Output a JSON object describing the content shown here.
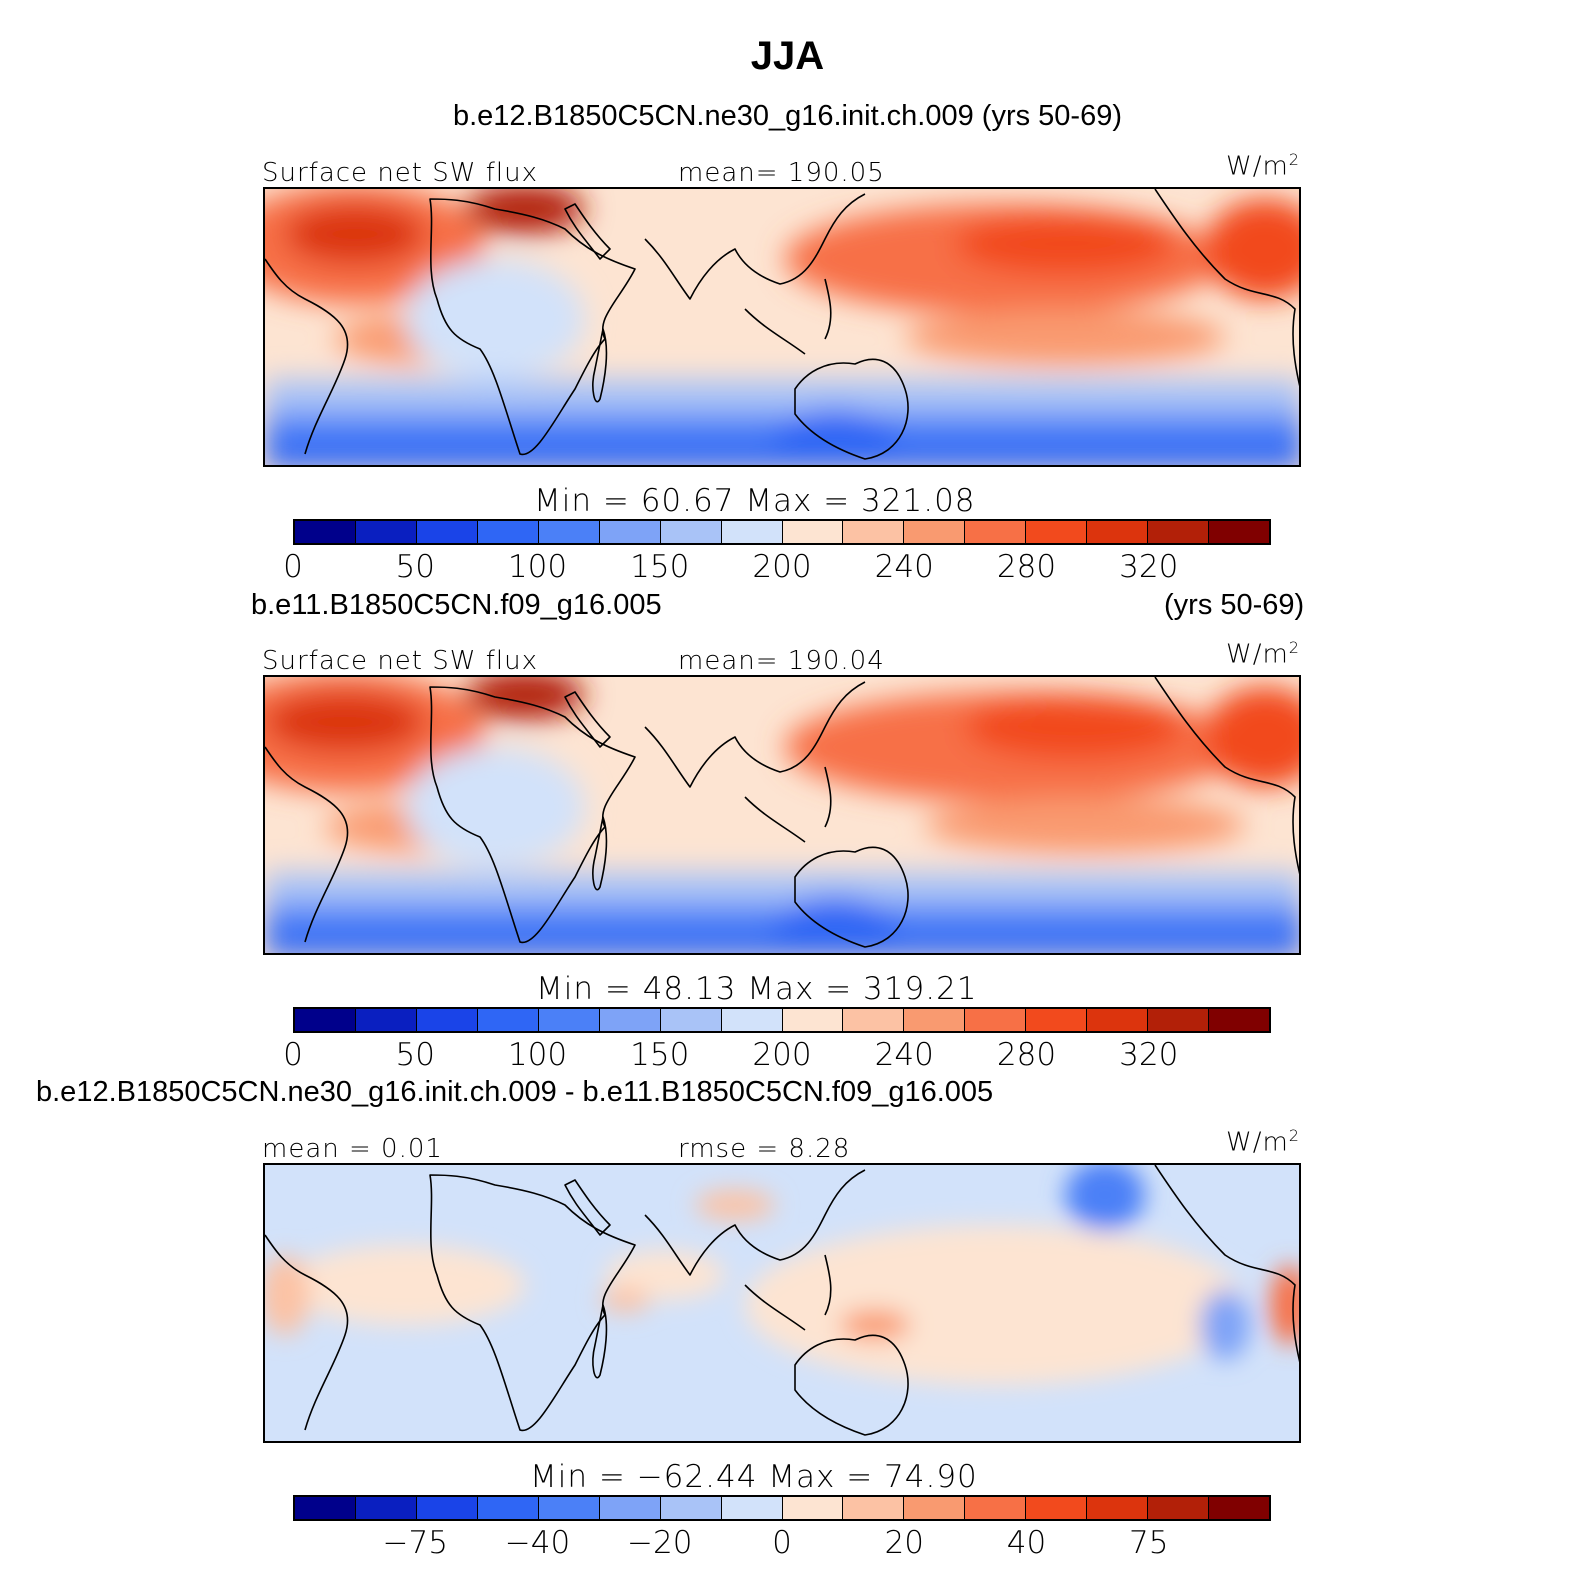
{
  "title": "JJA",
  "colors": {
    "full": [
      "#00008b",
      "#0a1fc0",
      "#1a44e8",
      "#2f66f5",
      "#4b80f7",
      "#7ea3f7",
      "#a9c3f7",
      "#d2e2fa",
      "#fde4d2",
      "#fcc2a4",
      "#f99a70",
      "#f77046",
      "#f24a1d",
      "#dc340d",
      "#b22008",
      "#800000"
    ],
    "land": "#9bb7ec"
  },
  "panels": [
    {
      "case_title": "b.e12.B1850C5CN.ne30_g16.init.ch.009 (yrs 50-69)",
      "left_label": "Surface net SW flux",
      "center_label": "mean= 190.05",
      "unit": "W/m",
      "unit_sup": "2",
      "min_max": "Min =   60.67  Max  =  321.08",
      "colorbar_ticks": [
        "0",
        "50",
        "100",
        "150",
        "200",
        "240",
        "280",
        "320"
      ]
    },
    {
      "case_title_left": "b.e11.B1850C5CN.f09_g16.005",
      "case_title_right": "(yrs 50-69)",
      "left_label": "Surface net SW flux",
      "center_label": "mean= 190.04",
      "unit": "W/m",
      "unit_sup": "2",
      "min_max": "Min =   48.13  Max  =  319.21",
      "colorbar_ticks": [
        "0",
        "50",
        "100",
        "150",
        "200",
        "240",
        "280",
        "320"
      ]
    },
    {
      "case_title": "b.e12.B1850C5CN.ne30_g16.init.ch.009 - b.e11.B1850C5CN.f09_g16.005",
      "left_label": "mean =    0.01",
      "center_label": "rmse =    8.28",
      "unit": "W/m",
      "unit_sup": "2",
      "min_max": "Min = −62.44  Max  =   74.90",
      "colorbar_ticks": [
        "−75",
        "−40",
        "−20",
        "0",
        "20",
        "40",
        "75"
      ]
    }
  ]
}
